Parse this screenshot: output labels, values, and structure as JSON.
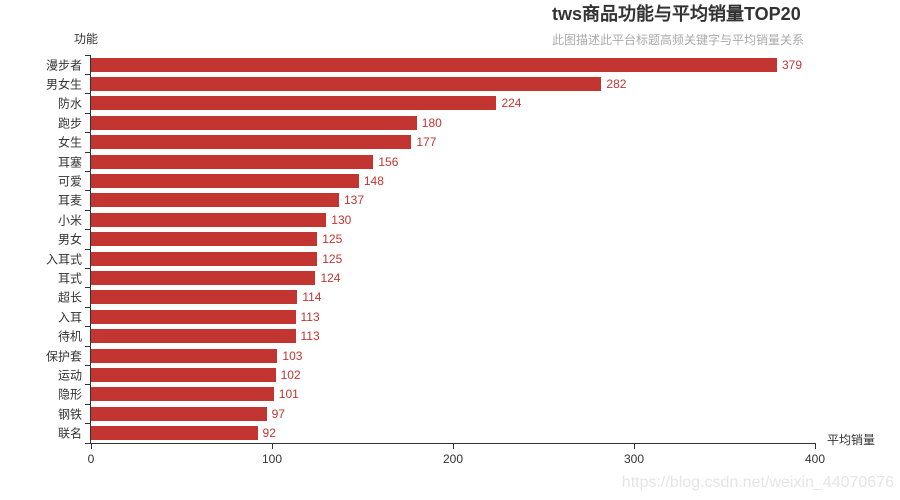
{
  "header": {
    "title": "tws商品功能与平均销量TOP20",
    "subtitle": "此图描述此平台标题高频关键字与平均销量关系"
  },
  "axes": {
    "y_axis_name": "功能",
    "x_axis_name": "平均销量"
  },
  "watermark": "https://blog.csdn.net/weixin_44070676",
  "colors": {
    "bar": "#c23531",
    "value_label": "#c23531",
    "axis": "#333333",
    "title": "#333333",
    "subtitle": "#aaaaaa",
    "watermark": "#e5e5e5",
    "background": "#ffffff"
  },
  "chart_data": {
    "type": "bar",
    "orientation": "horizontal",
    "title": "tws商品功能与平均销量TOP20",
    "subtitle": "此图描述此平台标题高频关键字与平均销量关系",
    "categories": [
      "漫步者",
      "男女生",
      "防水",
      "跑步",
      "女生",
      "耳塞",
      "可爱",
      "耳麦",
      "小米",
      "男女",
      "入耳式",
      "耳式",
      "超长",
      "入耳",
      "待机",
      "保护套",
      "运动",
      "隐形",
      "钢铁",
      "联名"
    ],
    "values": [
      379,
      282,
      224,
      180,
      177,
      156,
      148,
      137,
      130,
      125,
      125,
      124,
      114,
      113,
      113,
      103,
      102,
      101,
      97,
      92
    ],
    "xlabel": "平均销量",
    "ylabel": "功能",
    "xlim": [
      0,
      400
    ],
    "x_ticks": [
      0,
      100,
      200,
      300,
      400
    ],
    "grid": false,
    "value_labels": true,
    "legend": "none",
    "sort": "descending"
  }
}
